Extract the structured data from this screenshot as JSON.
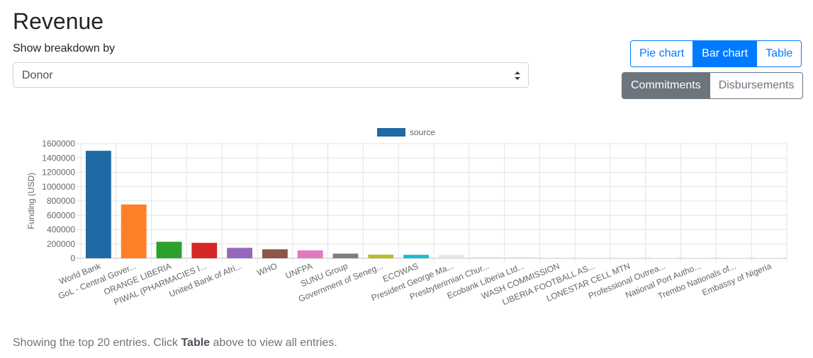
{
  "page": {
    "title": "Revenue",
    "breakdown_label": "Show breakdown by",
    "breakdown_value": "Donor"
  },
  "view_buttons": [
    {
      "label": "Pie chart",
      "active": false
    },
    {
      "label": "Bar chart",
      "active": true
    },
    {
      "label": "Table",
      "active": false
    }
  ],
  "measure_buttons": [
    {
      "label": "Commitments",
      "active": true
    },
    {
      "label": "Disbursements",
      "active": false
    }
  ],
  "footnote": {
    "before": "Showing the top 20 entries. Click ",
    "emphasis": "Table",
    "after": " above to view all entries."
  },
  "chart_data": {
    "type": "bar",
    "legend": {
      "label": "source",
      "color": "#1f6aa5",
      "position": "top"
    },
    "xlabel": "",
    "ylabel": "Funding (USD)",
    "ylim": [
      0,
      1600000
    ],
    "yticks": [
      0,
      200000,
      400000,
      600000,
      800000,
      1000000,
      1200000,
      1400000,
      1600000
    ],
    "grid": true,
    "categories": [
      "World Bank",
      "GoL - Central Gover...",
      "ORANGE LIBERIA",
      "PIWAL (PHARMACIES I...",
      "United Bank of Afri...",
      "WHO",
      "UNFPA",
      "SUNU Group",
      "Government of Seneg...",
      "ECOWAS",
      "President George Ma...",
      "Presbyterirnian Chur...",
      "Ecobank Liberia Ltd...",
      "WASH COMMISSION",
      "LIBERIA FOOTBALL AS...",
      "LONESTAR CELL MTN",
      "Professional Outrea...",
      "National Port Autho...",
      "Trembo Nationals of...",
      "Embassy of Nigeria"
    ],
    "values": [
      1500000,
      750000,
      230000,
      215000,
      145000,
      125000,
      110000,
      65000,
      50000,
      48000,
      45000,
      20000,
      18000,
      10000,
      8000,
      6000,
      5000,
      4000,
      3000,
      2000
    ],
    "colors": [
      "#1f6aa5",
      "#ff7f27",
      "#2ca02c",
      "#d62728",
      "#9467bd",
      "#8c564b",
      "#e377c2",
      "#7f7f7f",
      "#bcbd22",
      "#17becf",
      "#e6e6e6",
      "#e6e6e6",
      "#e6e6e6",
      "#e6e6e6",
      "#e6e6e6",
      "#e6e6e6",
      "#e6e6e6",
      "#e6e6e6",
      "#e6e6e6",
      "#e6e6e6"
    ]
  }
}
